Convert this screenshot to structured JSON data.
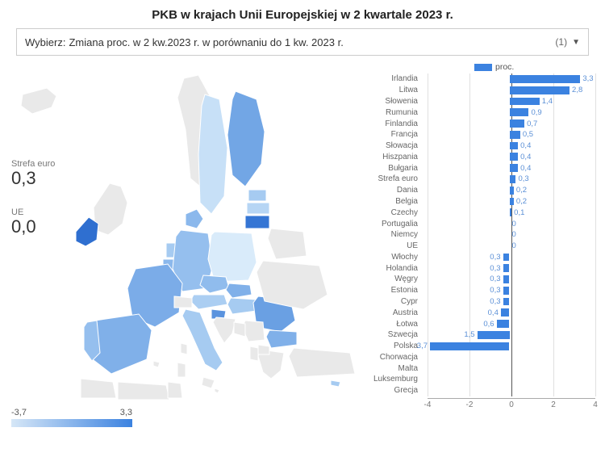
{
  "title": "PKB w krajach Unii Europejskiej w 2 kwartale 2023 r.",
  "selector": {
    "label": "Wybierz:",
    "value": "Zmiana proc. w 2 kw.2023 r. w porównaniu do 1 kw. 2023 r.",
    "count": "(1)"
  },
  "kpis": {
    "eurozone_label": "Strefa euro",
    "eurozone_value": "0,3",
    "eu_label": "UE",
    "eu_value": "0,0"
  },
  "scale": {
    "min": "-3,7",
    "max": "3,3"
  },
  "legend": {
    "label": "proc."
  },
  "bar_chart": {
    "xmin": -4,
    "xmax": 4,
    "ticks": [
      -4,
      -2,
      0,
      2,
      4
    ],
    "color_pos": "#3b82e0",
    "color_neg": "#3b82e0",
    "items": [
      {
        "label": "Irlandia",
        "value": 3.3,
        "txt": "3,3"
      },
      {
        "label": "Litwa",
        "value": 2.8,
        "txt": "2,8"
      },
      {
        "label": "Słowenia",
        "value": 1.4,
        "txt": "1,4"
      },
      {
        "label": "Rumunia",
        "value": 0.9,
        "txt": "0,9"
      },
      {
        "label": "Finlandia",
        "value": 0.7,
        "txt": "0,7"
      },
      {
        "label": "Francja",
        "value": 0.5,
        "txt": "0,5"
      },
      {
        "label": "Słowacja",
        "value": 0.4,
        "txt": "0,4"
      },
      {
        "label": "Hiszpania",
        "value": 0.4,
        "txt": "0,4"
      },
      {
        "label": "Bułgaria",
        "value": 0.4,
        "txt": "0,4"
      },
      {
        "label": "Strefa euro",
        "value": 0.3,
        "txt": "0,3"
      },
      {
        "label": "Dania",
        "value": 0.2,
        "txt": "0,2"
      },
      {
        "label": "Belgia",
        "value": 0.2,
        "txt": "0,2"
      },
      {
        "label": "Czechy",
        "value": 0.1,
        "txt": "0,1"
      },
      {
        "label": "Portugalia",
        "value": 0,
        "txt": "0"
      },
      {
        "label": "Niemcy",
        "value": 0,
        "txt": "0"
      },
      {
        "label": "UE",
        "value": 0,
        "txt": "0"
      },
      {
        "label": "Włochy",
        "value": -0.3,
        "txt": "0,3"
      },
      {
        "label": "Holandia",
        "value": -0.3,
        "txt": "0,3"
      },
      {
        "label": "Węgry",
        "value": -0.3,
        "txt": "0,3"
      },
      {
        "label": "Estonia",
        "value": -0.3,
        "txt": "0,3"
      },
      {
        "label": "Cypr",
        "value": -0.3,
        "txt": "0,3"
      },
      {
        "label": "Austria",
        "value": -0.4,
        "txt": "0,4"
      },
      {
        "label": "Łotwa",
        "value": -0.6,
        "txt": "0,6"
      },
      {
        "label": "Szwecja",
        "value": -1.5,
        "txt": "1,5"
      },
      {
        "label": "Polska",
        "value": -3.7,
        "txt": "3,7"
      },
      {
        "label": "Chorwacja",
        "value": null,
        "txt": ""
      },
      {
        "label": "Malta",
        "value": null,
        "txt": ""
      },
      {
        "label": "Luksemburg",
        "value": null,
        "txt": ""
      },
      {
        "label": "Grecja",
        "value": null,
        "txt": ""
      }
    ]
  },
  "map": {
    "no_data_fill": "#e9e9e9",
    "stroke": "#ffffff",
    "countries": {
      "Ireland": {
        "fill": "#2f6fd0"
      },
      "Lithuania": {
        "fill": "#3575d4"
      },
      "Slovenia": {
        "fill": "#5a93de"
      },
      "Romania": {
        "fill": "#6aa0e3"
      },
      "Finland": {
        "fill": "#72a6e5"
      },
      "France": {
        "fill": "#7bace8"
      },
      "Slovakia": {
        "fill": "#80b0e9"
      },
      "Spain": {
        "fill": "#80b0e9"
      },
      "Bulgaria": {
        "fill": "#80b0e9"
      },
      "Denmark": {
        "fill": "#8bb8ec"
      },
      "Belgium": {
        "fill": "#8bb8ec"
      },
      "Czechia": {
        "fill": "#90bced"
      },
      "Portugal": {
        "fill": "#95bfee"
      },
      "Germany": {
        "fill": "#95bfee"
      },
      "Italy": {
        "fill": "#a6cbf1"
      },
      "Netherlands": {
        "fill": "#a6cbf1"
      },
      "Hungary": {
        "fill": "#a6cbf1"
      },
      "Estonia": {
        "fill": "#a6cbf1"
      },
      "Cyprus": {
        "fill": "#a6cbf1"
      },
      "Austria": {
        "fill": "#abcef2"
      },
      "Latvia": {
        "fill": "#b6d5f4"
      },
      "Sweden": {
        "fill": "#c7e0f7"
      },
      "Poland": {
        "fill": "#d9ebfa"
      },
      "Croatia": {
        "fill": "#e9e9e9"
      },
      "Malta": {
        "fill": "#e9e9e9"
      },
      "Luxembourg": {
        "fill": "#e9e9e9"
      },
      "Greece": {
        "fill": "#e9e9e9"
      }
    }
  }
}
